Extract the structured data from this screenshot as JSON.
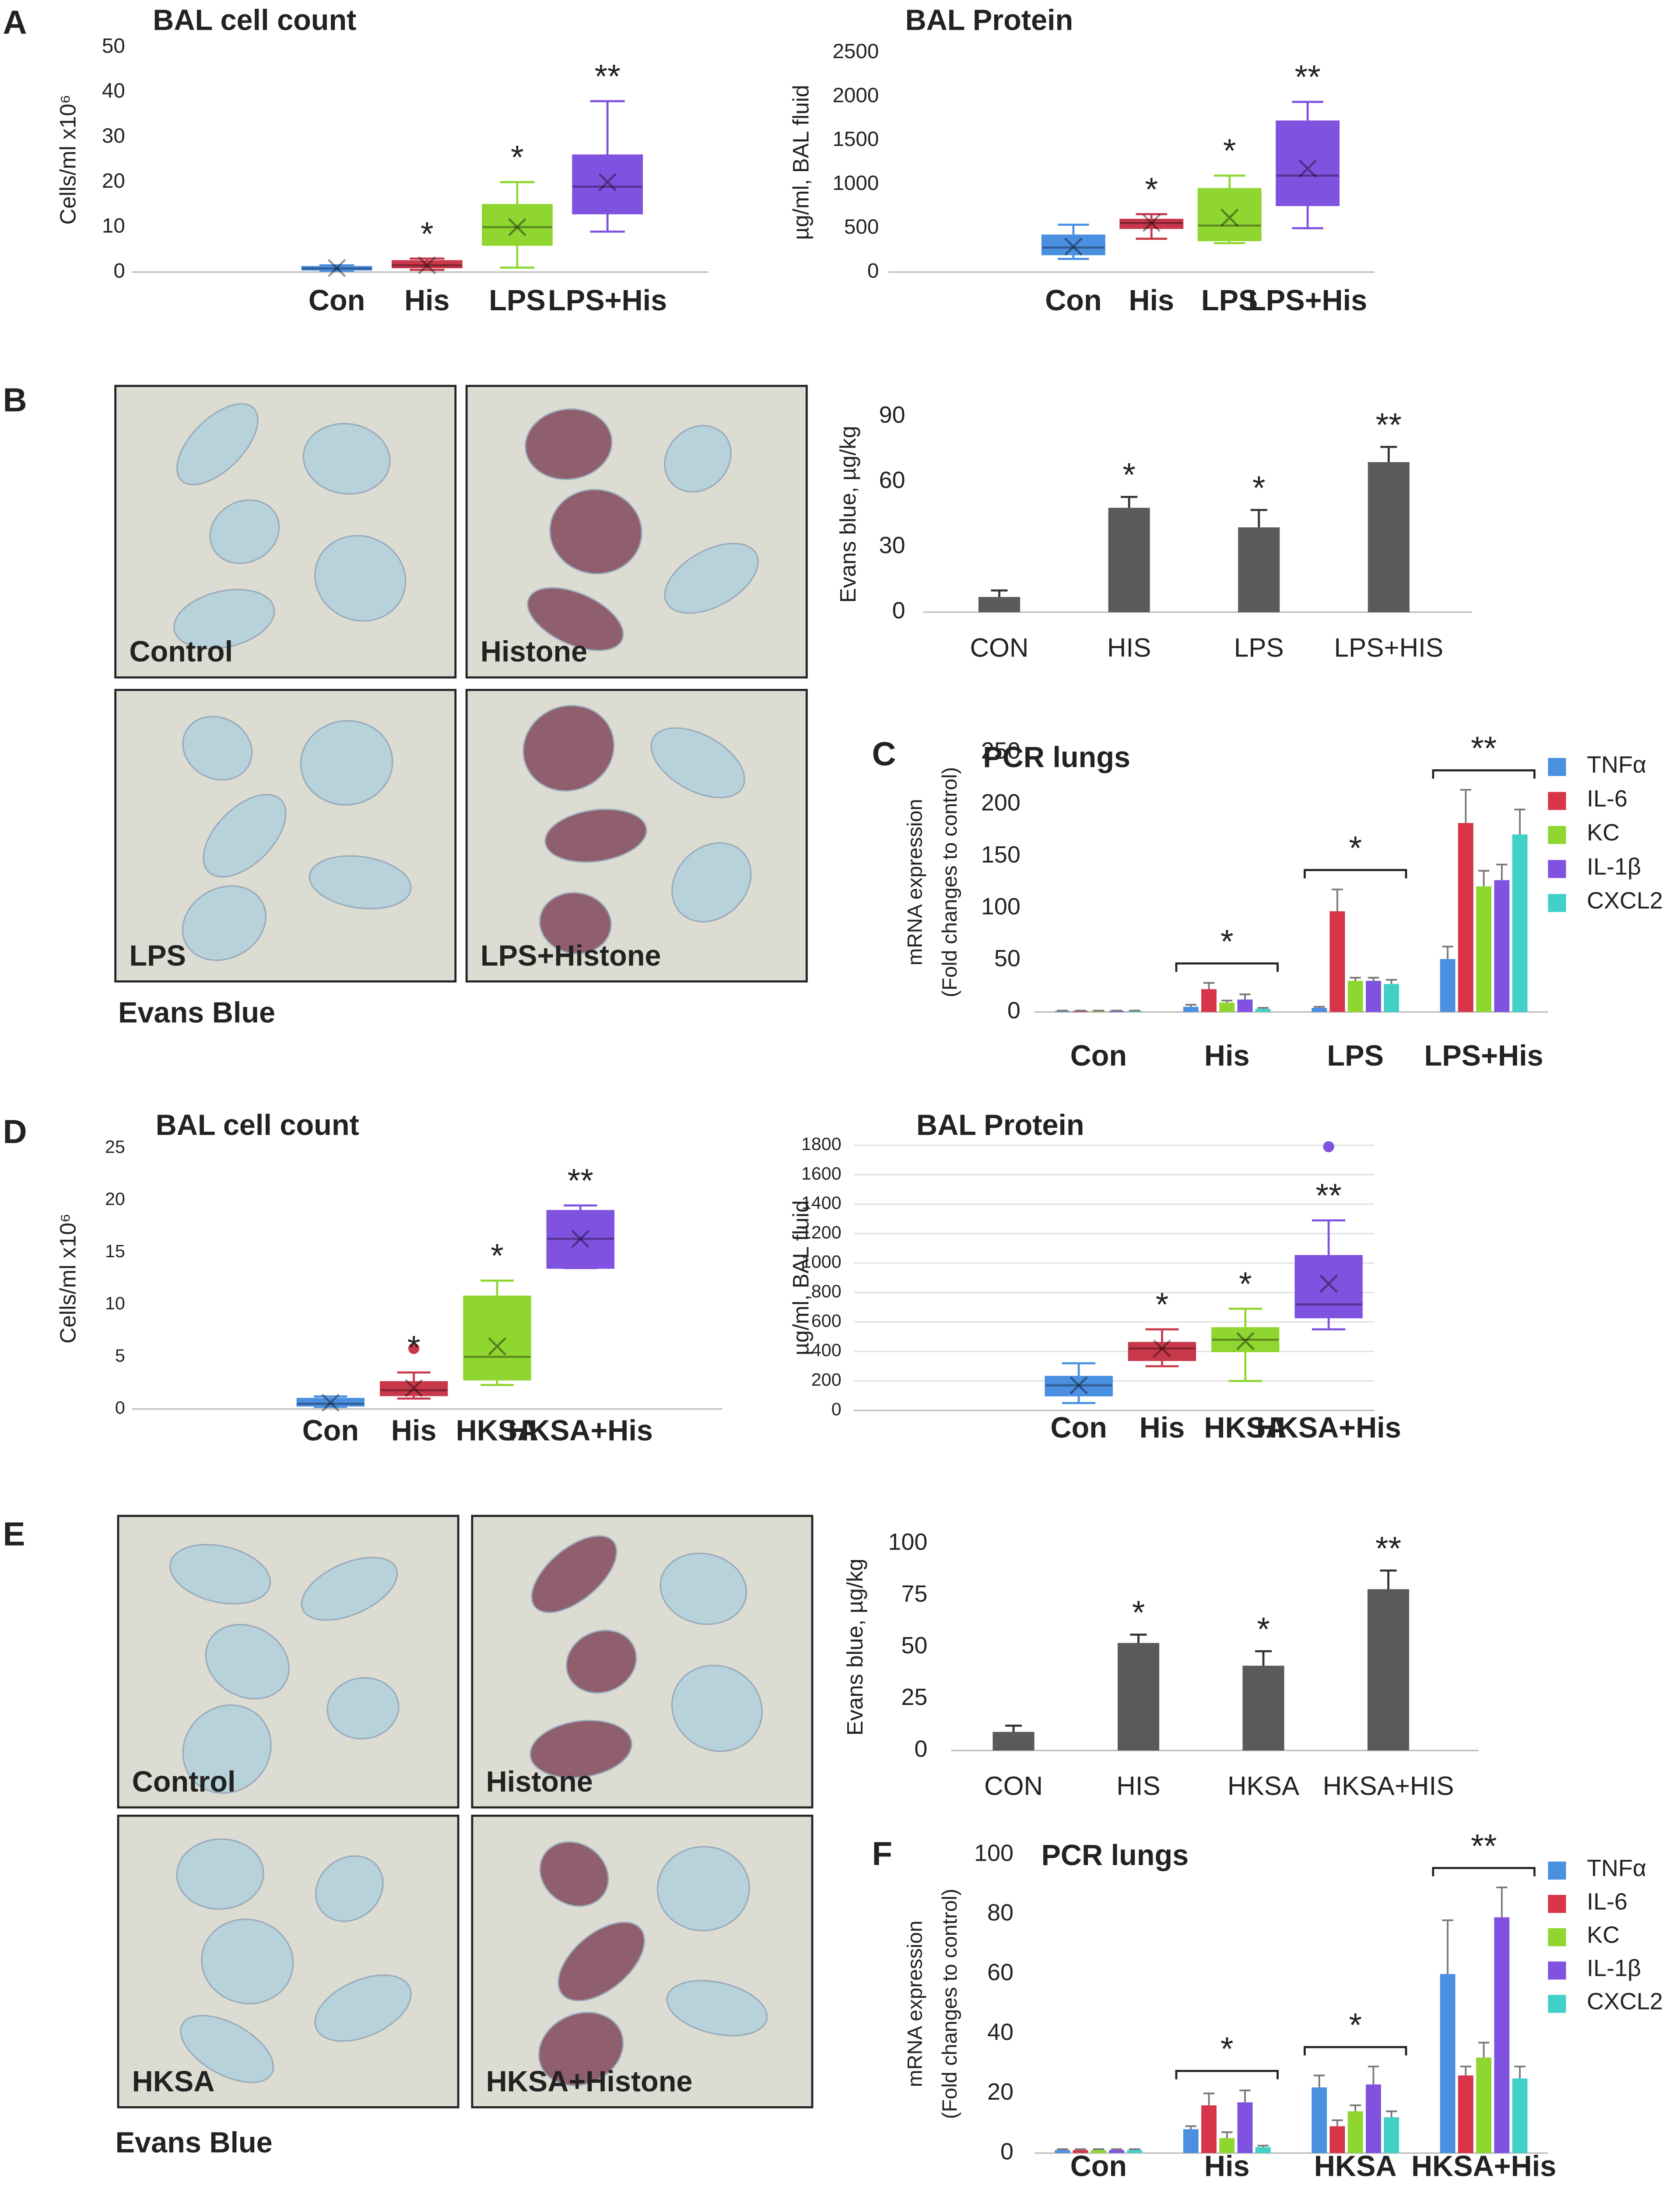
{
  "figure": {
    "panel_labels": [
      "A",
      "B",
      "C",
      "D",
      "E",
      "F"
    ],
    "photos": [
      {
        "label": "Control"
      },
      {
        "label": "Histone"
      },
      {
        "label": "LPS"
      },
      {
        "label": "LPS+Histone"
      },
      {
        "label": "Control"
      },
      {
        "label": "Histone"
      },
      {
        "label": "HKSA"
      },
      {
        "label": "HKSA+Histone"
      }
    ],
    "photo_captions": [
      "Evans Blue",
      "Evans Blue"
    ]
  },
  "chart_data": [
    {
      "type": "box",
      "title": "BAL cell count",
      "ylabel": "Cells/ml x10⁶",
      "categories": [
        "Con",
        "His",
        "LPS",
        "LPS+His"
      ],
      "colors": [
        "#4a8fe0",
        "#c8374a",
        "#8fd630",
        "#8052e0"
      ],
      "boxes": [
        {
          "whisker_low": 0.3,
          "q1": 0.5,
          "median": 0.8,
          "q3": 1.2,
          "whisker_high": 1.5,
          "mean": 0.9,
          "outliers": []
        },
        {
          "whisker_low": 0.5,
          "q1": 1,
          "median": 1.5,
          "q3": 2.5,
          "whisker_high": 3,
          "mean": 1.5,
          "outliers": []
        },
        {
          "whisker_low": 1,
          "q1": 6,
          "median": 10,
          "q3": 15,
          "whisker_high": 20,
          "mean": 10,
          "outliers": []
        },
        {
          "whisker_low": 9,
          "q1": 13,
          "median": 19,
          "q3": 26,
          "whisker_high": 38,
          "mean": 20,
          "outliers": []
        }
      ],
      "annotations": [
        null,
        "*",
        "*",
        "**"
      ],
      "ylim": [
        0,
        50
      ],
      "yticks": [
        0,
        10,
        20,
        30,
        40,
        50
      ],
      "grid": false
    },
    {
      "type": "box",
      "title": "BAL Protein",
      "ylabel": "µg/ml, BAL fluid",
      "categories": [
        "Con",
        "His",
        "LPS",
        "LPS+His"
      ],
      "colors": [
        "#4a8fe0",
        "#c8374a",
        "#8fd630",
        "#8052e0"
      ],
      "boxes": [
        {
          "whisker_low": 150,
          "q1": 200,
          "median": 280,
          "q3": 420,
          "whisker_high": 540,
          "mean": 290,
          "outliers": []
        },
        {
          "whisker_low": 380,
          "q1": 500,
          "median": 560,
          "q3": 600,
          "whisker_high": 660,
          "mean": 560,
          "outliers": []
        },
        {
          "whisker_low": 330,
          "q1": 360,
          "median": 530,
          "q3": 950,
          "whisker_high": 1100,
          "mean": 620,
          "outliers": []
        },
        {
          "whisker_low": 500,
          "q1": 760,
          "median": 1100,
          "q3": 1720,
          "whisker_high": 1940,
          "mean": 1180,
          "outliers": []
        }
      ],
      "annotations": [
        null,
        "*",
        "*",
        "**"
      ],
      "ylim": [
        0,
        2500
      ],
      "yticks": [
        0,
        500,
        1000,
        1500,
        2000,
        2500
      ],
      "grid": false
    },
    {
      "type": "bar",
      "ylabel": "Evans blue, µg/kg",
      "categories": [
        "CON",
        "HIS",
        "LPS",
        "LPS+HIS"
      ],
      "values": [
        7,
        48,
        39,
        69
      ],
      "errors": [
        3,
        5,
        8,
        7
      ],
      "color": "#595b5b",
      "annotations": [
        null,
        "*",
        "*",
        "**"
      ],
      "ylim": [
        0,
        90
      ],
      "yticks": [
        0,
        30,
        60,
        90
      ],
      "grid": false
    },
    {
      "type": "bar",
      "title": "PCR lungs",
      "ylabel": [
        "mRNA expression",
        "(Fold changes  to control)"
      ],
      "categories": [
        "Con",
        "His",
        "LPS",
        "LPS+His"
      ],
      "series": [
        {
          "name": "TNFα",
          "color": "#4a8fe0",
          "values": [
            1,
            5,
            4,
            51
          ],
          "errors": [
            0.3,
            2,
            1,
            12
          ]
        },
        {
          "name": "IL-6",
          "color": "#d8344a",
          "values": [
            1,
            22,
            97,
            182
          ],
          "errors": [
            0.3,
            6,
            21,
            32
          ]
        },
        {
          "name": "KC",
          "color": "#8fd630",
          "values": [
            1,
            9,
            30,
            121
          ],
          "errors": [
            0.3,
            2,
            3,
            15
          ]
        },
        {
          "name": "IL-1β",
          "color": "#8052e0",
          "values": [
            1,
            12,
            30,
            127
          ],
          "errors": [
            0.3,
            5,
            3,
            15
          ]
        },
        {
          "name": "CXCL2",
          "color": "#40d0c8",
          "values": [
            1,
            3,
            27,
            171
          ],
          "errors": [
            0.3,
            1,
            4,
            24
          ]
        }
      ],
      "bracket_labels": [
        null,
        "*",
        "*",
        "**"
      ],
      "legend": "right",
      "ylim": [
        0,
        250
      ],
      "yticks": [
        0,
        50,
        100,
        150,
        200,
        250
      ],
      "grid": false
    },
    {
      "type": "box",
      "title": "BAL cell count",
      "ylabel": "Cells/ml x10⁶",
      "categories": [
        "Con",
        "His",
        "HKSA",
        "HKSA+His"
      ],
      "colors": [
        "#4a8fe0",
        "#c8374a",
        "#8fd630",
        "#8052e0"
      ],
      "boxes": [
        {
          "whisker_low": 0.2,
          "q1": 0.3,
          "median": 0.5,
          "q3": 1,
          "whisker_high": 1.2,
          "mean": 0.6,
          "outliers": []
        },
        {
          "whisker_low": 1,
          "q1": 1.3,
          "median": 1.8,
          "q3": 2.6,
          "whisker_high": 3.5,
          "mean": 2,
          "outliers": [
            5.8
          ]
        },
        {
          "whisker_low": 2.3,
          "q1": 2.8,
          "median": 5,
          "q3": 10.8,
          "whisker_high": 12.3,
          "mean": 6,
          "outliers": []
        },
        {
          "whisker_low": 13.5,
          "q1": 13.5,
          "median": 16.3,
          "q3": 19,
          "whisker_high": 19.5,
          "mean": 16.3,
          "outliers": []
        }
      ],
      "annotations": [
        null,
        "*",
        "*",
        "**"
      ],
      "ylim": [
        0,
        25
      ],
      "yticks": [
        0,
        5,
        10,
        15,
        20,
        25
      ],
      "grid": false
    },
    {
      "type": "box",
      "title": "BAL Protein",
      "ylabel": "µg/ml, BAL fluid",
      "categories": [
        "Con",
        "His",
        "HKSA",
        "HKSA+His"
      ],
      "colors": [
        "#4a8fe0",
        "#c8374a",
        "#8fd630",
        "#8052e0"
      ],
      "boxes": [
        {
          "whisker_low": 50,
          "q1": 100,
          "median": 170,
          "q3": 230,
          "whisker_high": 320,
          "mean": 170,
          "outliers": []
        },
        {
          "whisker_low": 300,
          "q1": 340,
          "median": 420,
          "q3": 460,
          "whisker_high": 550,
          "mean": 420,
          "outliers": []
        },
        {
          "whisker_low": 200,
          "q1": 400,
          "median": 480,
          "q3": 560,
          "whisker_high": 690,
          "mean": 470,
          "outliers": []
        },
        {
          "whisker_low": 550,
          "q1": 630,
          "median": 720,
          "q3": 1050,
          "whisker_high": 1290,
          "mean": 860,
          "outliers": [
            1790
          ]
        }
      ],
      "annotations": [
        null,
        "*",
        "*",
        "**"
      ],
      "ylim": [
        0,
        1800
      ],
      "yticks": [
        0,
        200,
        400,
        600,
        800,
        1000,
        1200,
        1400,
        1600,
        1800
      ],
      "grid": true
    },
    {
      "type": "bar",
      "ylabel": "Evans blue, µg/kg",
      "categories": [
        "CON",
        "HIS",
        "HKSA",
        "HKSA+HIS"
      ],
      "values": [
        9,
        52,
        41,
        78
      ],
      "errors": [
        3,
        4,
        7,
        9
      ],
      "color": "#595b5b",
      "annotations": [
        null,
        "*",
        "*",
        "**"
      ],
      "ylim": [
        0,
        100
      ],
      "yticks": [
        0,
        25,
        50,
        75,
        100
      ],
      "grid": false
    },
    {
      "type": "bar",
      "title": "PCR lungs",
      "ylabel": [
        "mRNA expression",
        "(Fold changes  to control)"
      ],
      "categories": [
        "Con",
        "His",
        "HKSA",
        "HKSA+His"
      ],
      "series": [
        {
          "name": "TNFα",
          "color": "#4a8fe0",
          "values": [
            1,
            8,
            22,
            60
          ],
          "errors": [
            0.3,
            1,
            4,
            18
          ]
        },
        {
          "name": "IL-6",
          "color": "#d8344a",
          "values": [
            1,
            16,
            9,
            26
          ],
          "errors": [
            0.3,
            4,
            2,
            3
          ]
        },
        {
          "name": "KC",
          "color": "#8fd630",
          "values": [
            1,
            5,
            14,
            32
          ],
          "errors": [
            0.3,
            2,
            2,
            5
          ]
        },
        {
          "name": "IL-1β",
          "color": "#8052e0",
          "values": [
            1,
            17,
            23,
            79
          ],
          "errors": [
            0.3,
            4,
            6,
            10
          ]
        },
        {
          "name": "CXCL2",
          "color": "#40d0c8",
          "values": [
            1,
            2,
            12,
            25
          ],
          "errors": [
            0.3,
            0.5,
            2,
            4
          ]
        }
      ],
      "bracket_labels": [
        null,
        "*",
        "*",
        "**"
      ],
      "legend": "right",
      "ylim": [
        0,
        100
      ],
      "yticks": [
        0,
        20,
        40,
        60,
        80,
        100
      ],
      "grid": false
    }
  ]
}
